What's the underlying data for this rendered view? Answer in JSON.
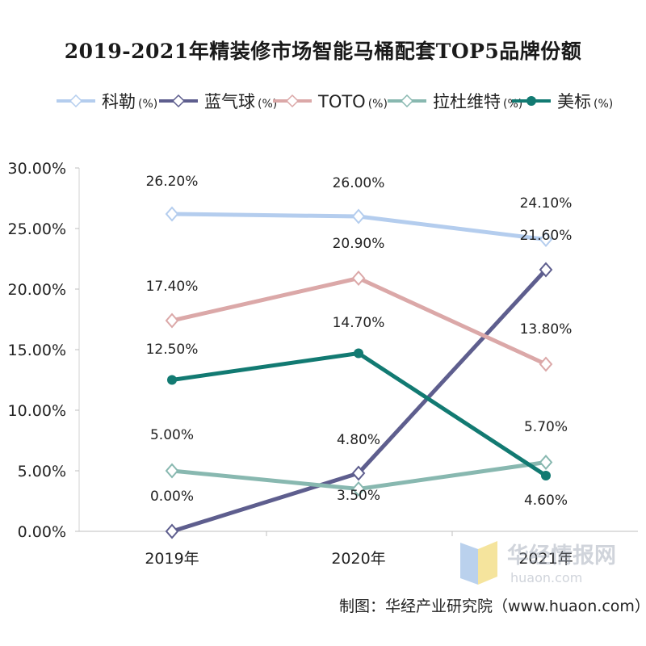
{
  "chart_data": {
    "type": "line",
    "title": "2019-2021年精装修市场智能马桶配套TOP5品牌份额",
    "categories": [
      "2019年",
      "2020年",
      "2021年"
    ],
    "y_ticks": [
      "0.00%",
      "5.00%",
      "10.00%",
      "15.00%",
      "20.00%",
      "25.00%",
      "30.00%"
    ],
    "ylim": [
      0,
      30
    ],
    "grid": false,
    "legend_position": "top",
    "series": [
      {
        "name": "科勒",
        "unit": "(%)",
        "values": [
          26.2,
          26.0,
          24.1
        ],
        "labels": [
          "26.20%",
          "26.00%",
          "24.10%"
        ],
        "color": "#b4cdee",
        "marker": "diamond-open"
      },
      {
        "name": "蓝气球",
        "unit": "(%)",
        "values": [
          0.0,
          4.8,
          21.6
        ],
        "labels": [
          "0.00%",
          "4.80%",
          "21.60%"
        ],
        "color": "#5e5e8e",
        "marker": "diamond-open"
      },
      {
        "name": "TOTO",
        "unit": "(%)",
        "values": [
          17.4,
          20.9,
          13.8
        ],
        "labels": [
          "17.40%",
          "20.90%",
          "13.80%"
        ],
        "color": "#dba8a8",
        "marker": "diamond-open"
      },
      {
        "name": "拉杜维特",
        "unit": "(%)",
        "values": [
          5.0,
          3.5,
          5.7
        ],
        "labels": [
          "5.00%",
          "3.50%",
          "5.70%"
        ],
        "color": "#88b8b0",
        "marker": "diamond-open"
      },
      {
        "name": "美标",
        "unit": "(%)",
        "values": [
          12.5,
          14.7,
          4.6
        ],
        "labels": [
          "12.50%",
          "14.70%",
          "4.60%"
        ],
        "color": "#127a72",
        "marker": "circle"
      }
    ]
  },
  "footer": {
    "source": "制图：华经产业研究院（www.huaon.com）"
  },
  "watermark": {
    "text": "华经情报网",
    "url": "huaon.com"
  }
}
